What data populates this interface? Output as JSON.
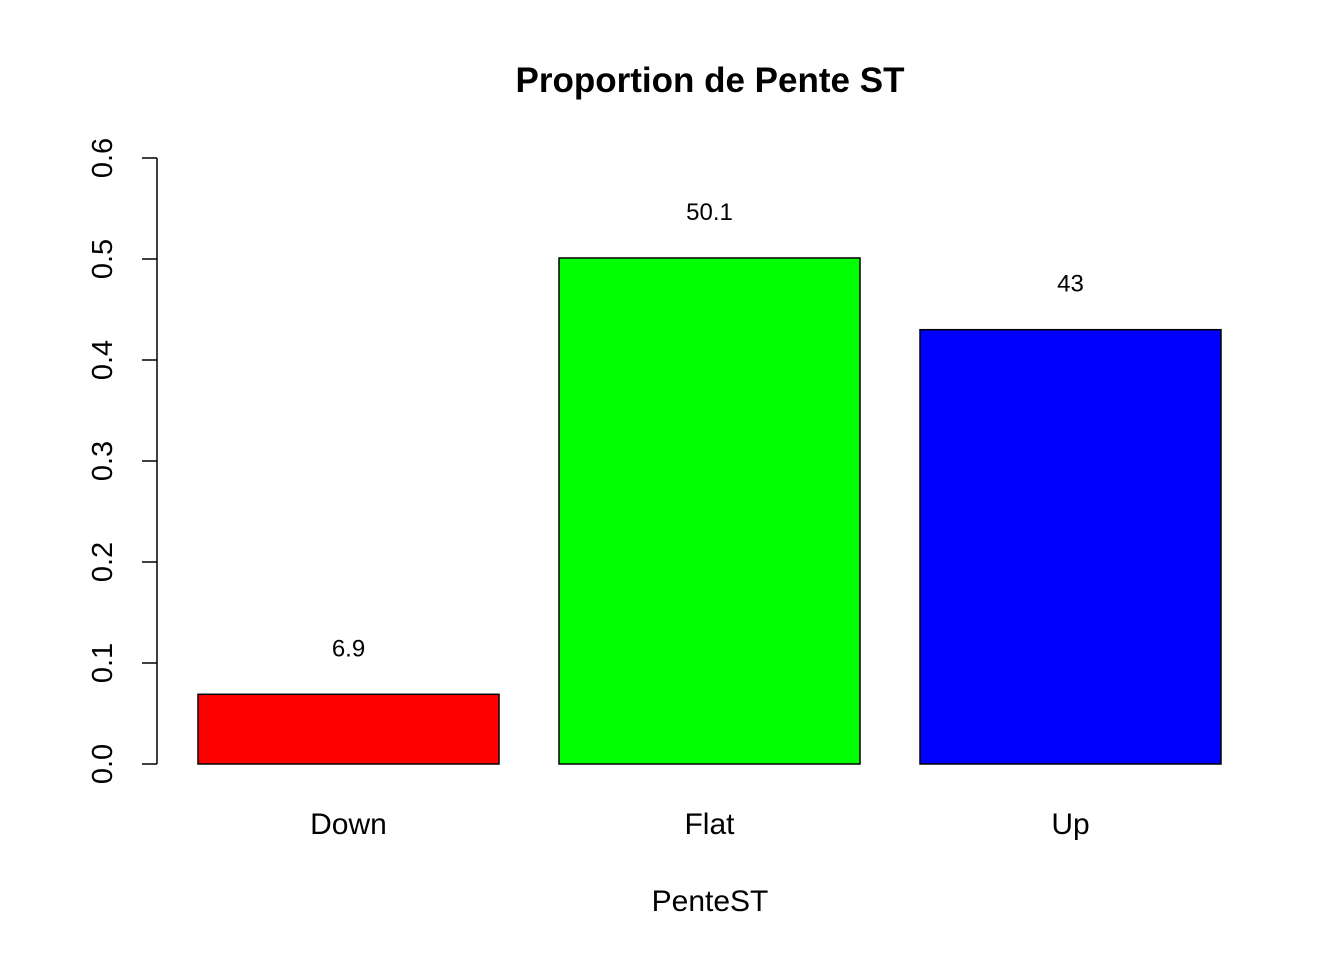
{
  "chart_data": {
    "type": "bar",
    "title": "Proportion de Pente ST",
    "xlabel": "PenteST",
    "ylabel": "",
    "ylim": [
      0,
      0.6
    ],
    "yticks": [
      "0.0",
      "0.1",
      "0.2",
      "0.3",
      "0.4",
      "0.5",
      "0.6"
    ],
    "ytick_values": [
      0,
      0.1,
      0.2,
      0.3,
      0.4,
      0.5,
      0.6
    ],
    "categories": [
      "Down",
      "Flat",
      "Up"
    ],
    "values": [
      0.069,
      0.501,
      0.43
    ],
    "data_labels": [
      "6.9",
      "50.1",
      "43"
    ],
    "colors": [
      "#ff0000",
      "#00ff00",
      "#0000ff"
    ],
    "grid": false,
    "legend": "none"
  }
}
